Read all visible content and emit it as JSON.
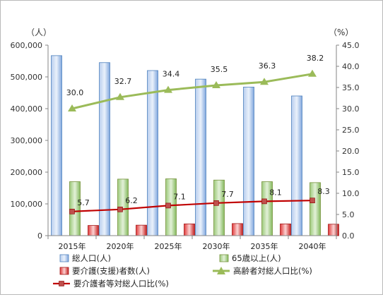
{
  "chart_data": {
    "type": "bar",
    "categories": [
      "2015年",
      "2020年",
      "2025年",
      "2030年",
      "2035年",
      "2040年"
    ],
    "y_left_unit": "（人）",
    "y_right_unit": "（%）",
    "y_left_range": [
      0,
      600000
    ],
    "y_left_ticks": [
      "0",
      "100,000",
      "200,000",
      "300,000",
      "400,000",
      "500,000",
      "600,000"
    ],
    "y_right_range": [
      0,
      45
    ],
    "y_right_ticks": [
      "0.0",
      "5.0",
      "10.0",
      "15.0",
      "20.0",
      "25.0",
      "30.0",
      "35.0",
      "40.0",
      "45.0"
    ],
    "grid": false,
    "legend_position": "bottom",
    "series": [
      {
        "name": "総人口(人)",
        "kind": "bar",
        "axis": "left",
        "color": "#8eb4e3",
        "values": [
          567000,
          545000,
          520000,
          493000,
          468000,
          440000
        ]
      },
      {
        "name": "65歳以上(人)",
        "kind": "bar",
        "axis": "left",
        "color": "#9bc77a",
        "values": [
          170000,
          178000,
          179000,
          175000,
          170000,
          167000
        ]
      },
      {
        "name": "要介護(支援)者数(人)",
        "kind": "bar",
        "axis": "left",
        "color": "#e24c4c",
        "values": [
          32000,
          33000,
          37000,
          38000,
          37000,
          36000
        ]
      },
      {
        "name": "高齢者対総人口比(%)",
        "kind": "line",
        "axis": "right",
        "color": "#9bbb59",
        "marker": "triangle",
        "values": [
          30.0,
          32.7,
          34.4,
          35.5,
          36.3,
          38.2
        ],
        "labels": [
          "30.0",
          "32.7",
          "34.4",
          "35.5",
          "36.3",
          "38.2"
        ]
      },
      {
        "name": "要介護者等対総人口比(%)",
        "kind": "line",
        "axis": "right",
        "color": "#c00000",
        "marker": "square",
        "values": [
          5.7,
          6.2,
          7.1,
          7.7,
          8.1,
          8.3
        ],
        "labels": [
          "5.7",
          "6.2",
          "7.1",
          "7.7",
          "8.1",
          "8.3"
        ]
      }
    ]
  }
}
